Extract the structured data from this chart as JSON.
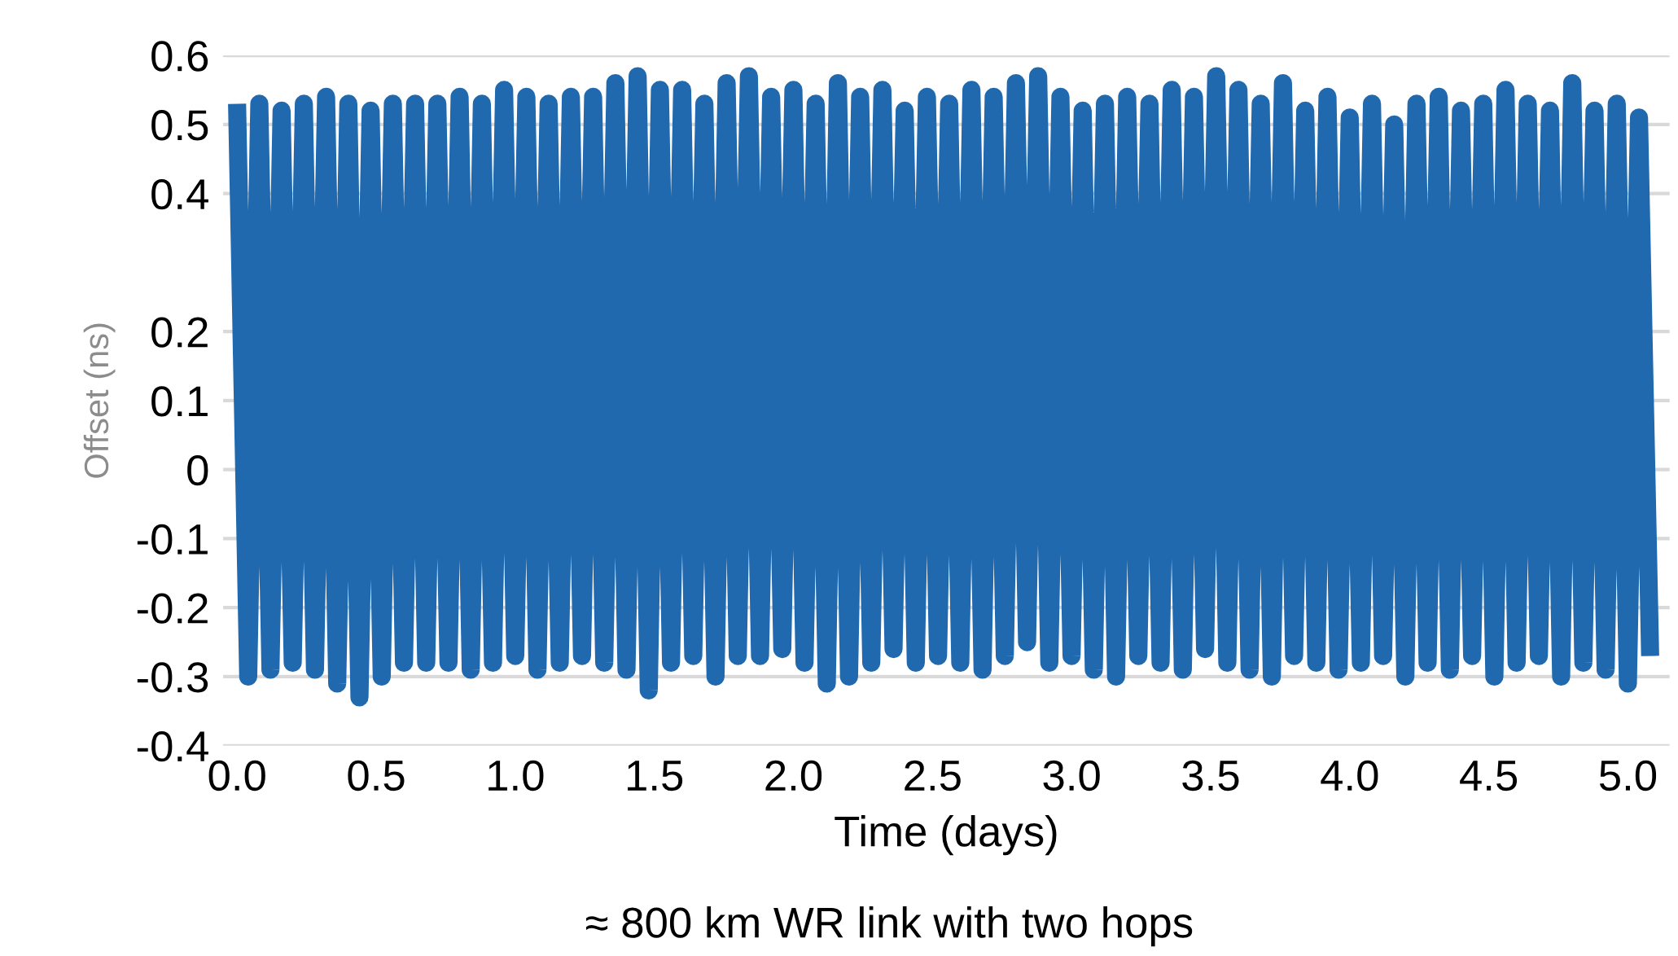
{
  "chart_data": {
    "type": "line",
    "xlabel": "Time (days)",
    "ylabel": "Offset (ns)",
    "annotations": [
      "≈ 800 km WR link with two hops"
    ],
    "xlim": [
      -0.05,
      5.15
    ],
    "ylim": [
      -0.4,
      0.6
    ],
    "xticks": [
      {
        "value": 0,
        "label": "0.0"
      },
      0.5,
      {
        "value": 1,
        "label": "1.0"
      },
      1.5,
      {
        "value": 2,
        "label": "2.0"
      },
      2.5,
      {
        "value": 3,
        "label": "3.0"
      },
      3.5,
      {
        "value": 4,
        "label": "4.0"
      },
      4.5,
      {
        "value": 5,
        "label": "5.0"
      }
    ],
    "yticks": [
      -0.4,
      -0.3,
      -0.2,
      -0.1,
      0,
      0.1,
      0.2,
      0.4,
      0.5,
      0.6
    ],
    "grid": "y",
    "marker": "none",
    "line_style": "solid",
    "series": [
      {
        "color": "#2169ae",
        "x": [
          0,
          0.04,
          0.08,
          0.12,
          0.16,
          0.2,
          0.24,
          0.28,
          0.32,
          0.36,
          0.4,
          0.44,
          0.48,
          0.52,
          0.56,
          0.6,
          0.64,
          0.68,
          0.72,
          0.76,
          0.8,
          0.84,
          0.88,
          0.92,
          0.96,
          1.0,
          1.04,
          1.08,
          1.12,
          1.16,
          1.2,
          1.24,
          1.28,
          1.32,
          1.36,
          1.4,
          1.44,
          1.48,
          1.52,
          1.56,
          1.6,
          1.64,
          1.68,
          1.72,
          1.76,
          1.8,
          1.84,
          1.88,
          1.92,
          1.96,
          2.0,
          2.04,
          2.08,
          2.12,
          2.16,
          2.2,
          2.24,
          2.28,
          2.32,
          2.36,
          2.4,
          2.44,
          2.48,
          2.52,
          2.56,
          2.6,
          2.64,
          2.68,
          2.72,
          2.76,
          2.8,
          2.84,
          2.88,
          2.92,
          2.96,
          3.0,
          3.04,
          3.08,
          3.12,
          3.16,
          3.2,
          3.24,
          3.28,
          3.32,
          3.36,
          3.4,
          3.44,
          3.48,
          3.52,
          3.56,
          3.6,
          3.64,
          3.68,
          3.72,
          3.76,
          3.8,
          3.84,
          3.88,
          3.92,
          3.96,
          4.0,
          4.04,
          4.08,
          4.12,
          4.16,
          4.2,
          4.24,
          4.28,
          4.32,
          4.36,
          4.4,
          4.44,
          4.48,
          4.52,
          4.56,
          4.6,
          4.64,
          4.68,
          4.72,
          4.76,
          4.8,
          4.84,
          4.88,
          4.92,
          4.96,
          5.0,
          5.04,
          5.08
        ],
        "values": [
          0.53,
          -0.3,
          0.53,
          -0.29,
          0.52,
          -0.28,
          0.53,
          -0.29,
          0.54,
          -0.31,
          0.53,
          -0.33,
          0.52,
          -0.3,
          0.53,
          -0.28,
          0.53,
          -0.28,
          0.53,
          -0.28,
          0.54,
          -0.29,
          0.53,
          -0.28,
          0.55,
          -0.27,
          0.54,
          -0.29,
          0.53,
          -0.28,
          0.54,
          -0.27,
          0.54,
          -0.28,
          0.56,
          -0.29,
          0.57,
          -0.32,
          0.55,
          -0.28,
          0.55,
          -0.27,
          0.53,
          -0.3,
          0.56,
          -0.27,
          0.57,
          -0.27,
          0.54,
          -0.26,
          0.55,
          -0.28,
          0.53,
          -0.31,
          0.56,
          -0.3,
          0.54,
          -0.28,
          0.55,
          -0.26,
          0.52,
          -0.28,
          0.54,
          -0.27,
          0.53,
          -0.28,
          0.55,
          -0.29,
          0.54,
          -0.27,
          0.56,
          -0.25,
          0.57,
          -0.28,
          0.54,
          -0.27,
          0.52,
          -0.29,
          0.53,
          -0.3,
          0.54,
          -0.27,
          0.53,
          -0.28,
          0.55,
          -0.29,
          0.54,
          -0.26,
          0.57,
          -0.28,
          0.55,
          -0.29,
          0.53,
          -0.3,
          0.56,
          -0.27,
          0.52,
          -0.28,
          0.54,
          -0.29,
          0.51,
          -0.28,
          0.53,
          -0.27,
          0.5,
          -0.3,
          0.53,
          -0.28,
          0.54,
          -0.29,
          0.52,
          -0.27,
          0.53,
          -0.3,
          0.55,
          -0.28,
          0.53,
          -0.27,
          0.52,
          -0.3,
          0.56,
          -0.28,
          0.52,
          -0.29,
          0.53,
          -0.31,
          0.51,
          -0.27
        ]
      }
    ]
  }
}
